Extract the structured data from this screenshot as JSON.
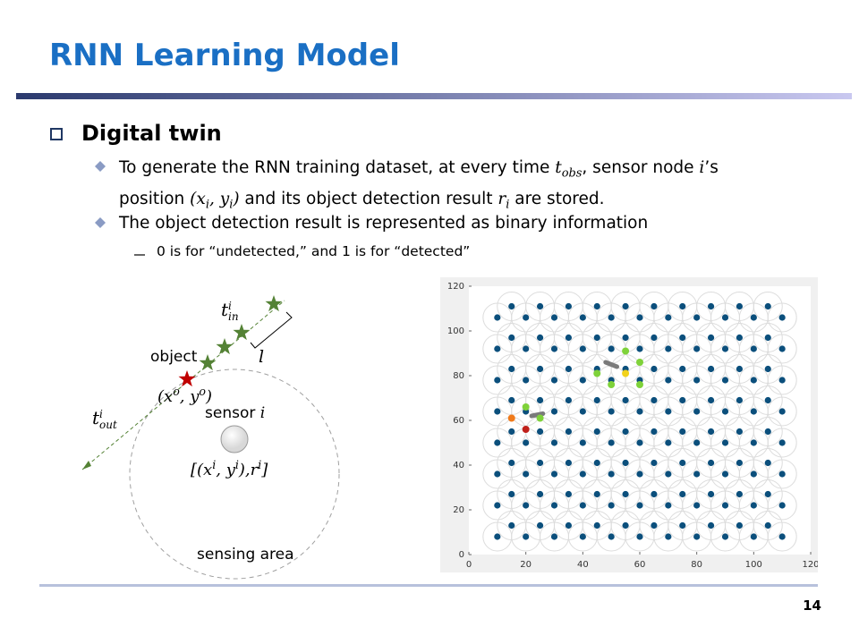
{
  "header": {
    "title": "RNN Learning Model",
    "page_number": "14"
  },
  "section": {
    "heading": "Digital twin",
    "bullets": [
      {
        "parts": [
          "To generate the RNN training dataset, at every time ",
          "t",
          "obs",
          ", sensor node ",
          "i",
          "’s position ",
          "(",
          "x",
          "i",
          ", ",
          "y",
          "i",
          ")",
          " and its object detection result ",
          "r",
          "i",
          " are stored."
        ]
      },
      {
        "parts": [
          "The object detection result is represented as binary information"
        ],
        "sub_bullets": [
          "0 is for “undetected,”  and 1 is for “detected”"
        ]
      }
    ]
  },
  "diagram": {
    "t_in": [
      "t",
      "i",
      "in"
    ],
    "object": "object",
    "length": "l",
    "object_position": [
      "(",
      "x",
      "o",
      ", ",
      "y",
      "o",
      ")"
    ],
    "sensor": [
      "sensor ",
      "i"
    ],
    "t_out": [
      "t",
      "i",
      "out"
    ],
    "sensor_record": [
      "[(",
      "x",
      "i",
      ", ",
      "y",
      "i",
      "),",
      "r",
      "i",
      "]"
    ],
    "sensing_area": "sensing area"
  },
  "chart_data": {
    "type": "scatter",
    "xlim": [
      0,
      120
    ],
    "ylim": [
      0,
      120
    ],
    "xticks": [
      0,
      20,
      40,
      60,
      80,
      100,
      120
    ],
    "yticks": [
      0,
      20,
      40,
      60,
      80,
      100,
      120
    ],
    "node_color": "#0b4f7c",
    "node_x": [
      10,
      15,
      20,
      25,
      30,
      35,
      40,
      45,
      50,
      55,
      60,
      65,
      70,
      75,
      80,
      85,
      90,
      95,
      100,
      105,
      110
    ],
    "node_y": [
      [
        8,
        22,
        36,
        50,
        64,
        78,
        92,
        106
      ],
      [
        13,
        27,
        41,
        55,
        69,
        83,
        97,
        111
      ]
    ],
    "highlights": [
      {
        "x": 20,
        "y": 66,
        "color": "#7fd23a"
      },
      {
        "x": 15,
        "y": 61,
        "color": "#f07a1a"
      },
      {
        "x": 20,
        "y": 56,
        "color": "#c0201a"
      },
      {
        "x": 25,
        "y": 61,
        "color": "#7fd23a"
      },
      {
        "x": 55,
        "y": 91,
        "color": "#7fd23a"
      },
      {
        "x": 45,
        "y": 81,
        "color": "#7fd23a"
      },
      {
        "x": 55,
        "y": 81,
        "color": "#f2d21b"
      },
      {
        "x": 60,
        "y": 86,
        "color": "#7fd23a"
      },
      {
        "x": 50,
        "y": 76,
        "color": "#7fd23a"
      },
      {
        "x": 60,
        "y": 76,
        "color": "#7fd23a"
      }
    ],
    "tracks": [
      {
        "x": [
          48,
          52
        ],
        "y": [
          86,
          84
        ],
        "color": "#7a7a7a"
      },
      {
        "x": [
          22,
          26
        ],
        "y": [
          62,
          63
        ],
        "color": "#7a7a7a"
      }
    ]
  }
}
